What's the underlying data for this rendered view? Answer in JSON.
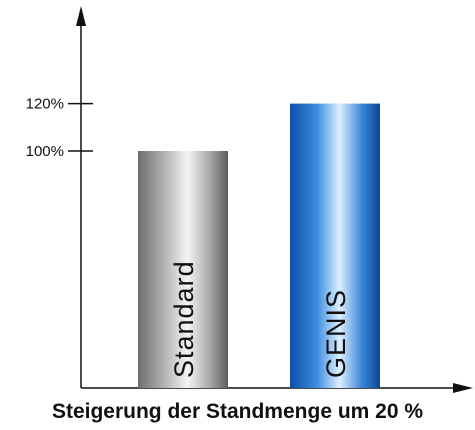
{
  "chart_data": {
    "type": "bar",
    "title": "Steigerung der Standmenge um 20 %",
    "categories": [
      "Standard",
      "GENIS"
    ],
    "values": [
      100,
      120
    ],
    "unit": "%",
    "ticks": [
      {
        "value": 100,
        "label": "100%"
      },
      {
        "value": 120,
        "label": "120%"
      }
    ],
    "ylim": [
      0,
      160
    ],
    "grid": false,
    "legend": "none"
  },
  "colors": {
    "axis": "#111111",
    "standard_dark": "#6e6e6e",
    "standard_light": "#f2f2f2",
    "genis_dark": "#0a4fa6",
    "genis_light": "#d6ecff"
  }
}
